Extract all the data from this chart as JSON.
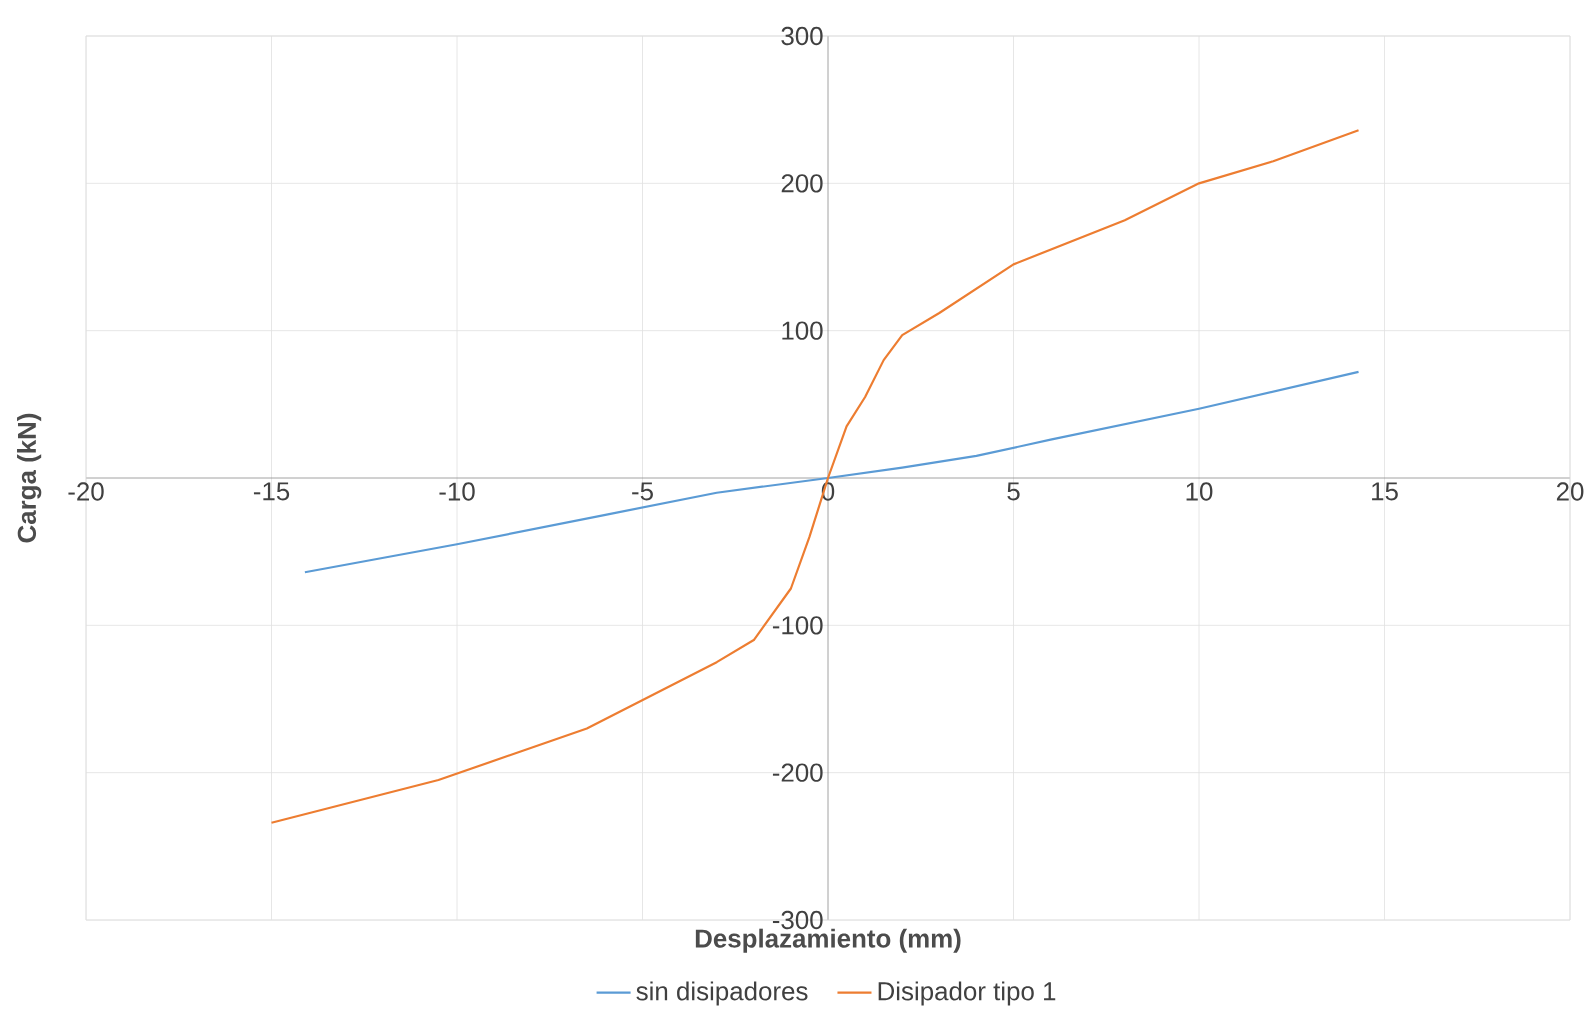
{
  "chart_data": {
    "type": "line",
    "xlabel": "Desplazamiento (mm)",
    "ylabel": "Carga (kN)",
    "xlim": [
      -20,
      20
    ],
    "ylim": [
      -300,
      300
    ],
    "xticks": [
      -20,
      -15,
      -10,
      -5,
      0,
      5,
      10,
      15,
      20
    ],
    "yticks": [
      -300,
      -200,
      -100,
      {
        "value": 0,
        "label": null
      },
      100,
      200,
      300
    ],
    "grid": true,
    "legend": "bottom",
    "marker": "none",
    "line_style": "solid",
    "series": [
      {
        "name": "sin disipadores",
        "color": "#5b9bd5",
        "x": [
          -14.1,
          -10,
          -6,
          -3,
          0,
          2,
          4,
          6,
          10,
          14.3
        ],
        "values": [
          -64,
          -45,
          -25,
          -10,
          0,
          7,
          15,
          26,
          47,
          72
        ]
      },
      {
        "name": "Disipador tipo 1",
        "color": "#ed7d31",
        "x": [
          -15,
          -10.5,
          -6.5,
          -3,
          -2,
          -1,
          -0.5,
          0,
          0.5,
          1,
          1.5,
          2,
          3,
          5,
          8,
          10,
          12,
          14.3
        ],
        "values": [
          -234,
          -205,
          -170,
          -125,
          -110,
          -75,
          -40,
          0,
          35,
          55,
          80,
          97,
          112,
          145,
          175,
          200,
          215,
          236
        ]
      }
    ]
  }
}
